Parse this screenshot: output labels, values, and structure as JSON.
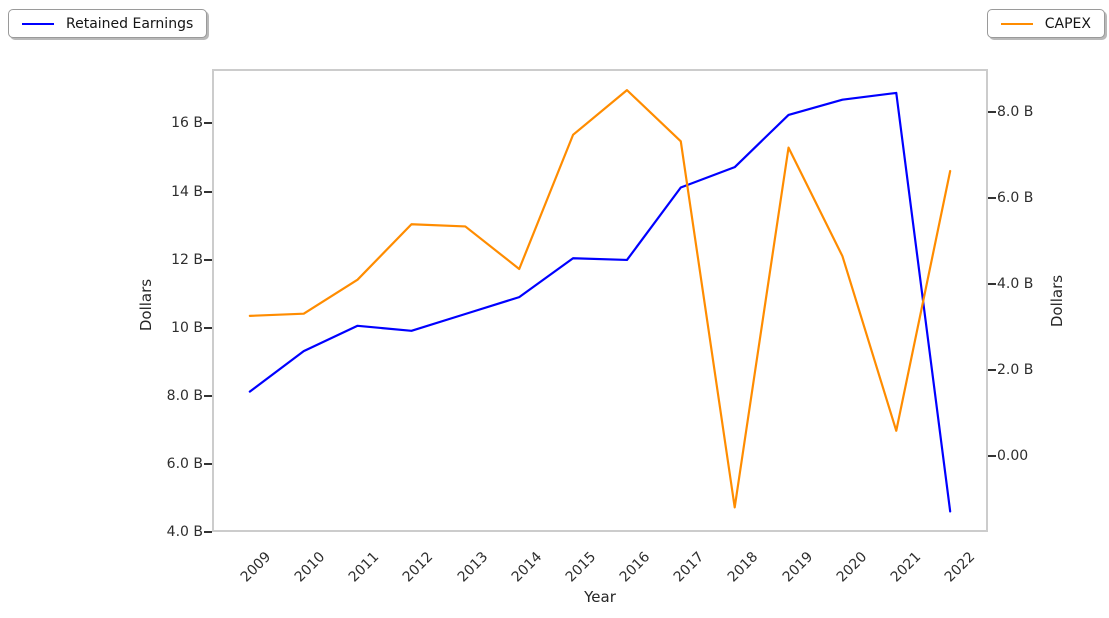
{
  "chart_data": {
    "type": "line",
    "title": "",
    "grid": false,
    "background_color": "#ffffff",
    "plot_border_color": "#cccccc",
    "categories": [
      "2009",
      "2010",
      "2011",
      "2012",
      "2013",
      "2014",
      "2015",
      "2016",
      "2017",
      "2018",
      "2019",
      "2020",
      "2021",
      "2022"
    ],
    "series": [
      {
        "name": "Retained Earnings",
        "axis": "left",
        "color": "#0000ff",
        "legend_position": "top-left",
        "values": [
          8.1,
          9.3,
          10.05,
          9.9,
          10.4,
          10.9,
          12.05,
          12.0,
          14.15,
          14.75,
          16.3,
          16.75,
          16.95,
          4.55
        ]
      },
      {
        "name": "CAPEX",
        "axis": "right",
        "color": "#ff8c00",
        "legend_position": "top-right",
        "values": [
          3.25,
          3.3,
          4.1,
          5.4,
          5.35,
          4.35,
          7.5,
          8.55,
          7.35,
          -1.25,
          7.2,
          4.65,
          0.55,
          6.65
        ]
      }
    ],
    "axes": {
      "left": {
        "label": "Dollars",
        "unit": "B",
        "tick_labels": [
          "4.0 B",
          "6.0 B",
          "8.0 B",
          "10 B",
          "12 B",
          "14 B",
          "16 B"
        ],
        "tick_values": [
          4,
          6,
          8,
          10,
          12,
          14,
          16
        ],
        "range": [
          4.0,
          17.6
        ]
      },
      "right": {
        "label": "Dollars",
        "unit": "B",
        "tick_labels": [
          "0.00",
          "2.0 B",
          "4.0 B",
          "6.0 B",
          "8.0 B"
        ],
        "tick_values": [
          0,
          2,
          4,
          6,
          8
        ],
        "range": [
          -1.78,
          9.0
        ]
      },
      "x": {
        "label": "Year",
        "tick_rotation_degrees": 45
      }
    }
  }
}
